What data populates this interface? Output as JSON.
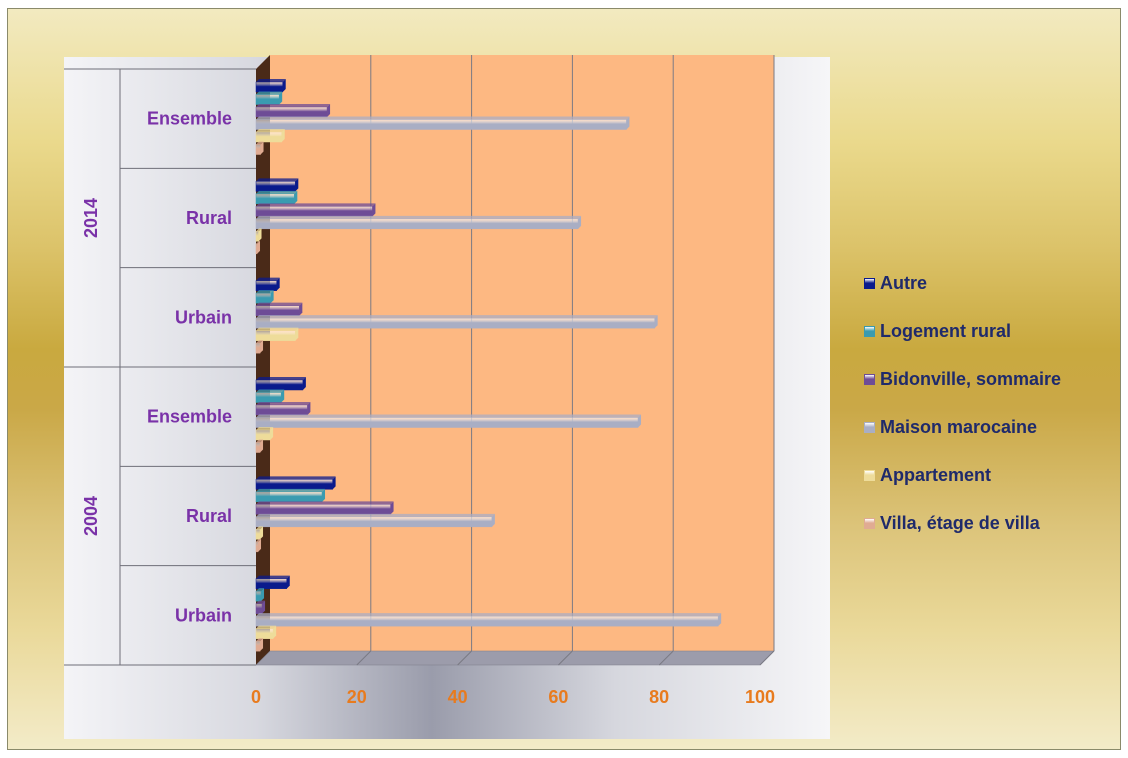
{
  "chart_data": {
    "type": "bar",
    "orientation": "horizontal",
    "title": "",
    "xlabel": "",
    "ylabel": "",
    "xlim": [
      0,
      100
    ],
    "x_ticks": [
      "0",
      "20",
      "40",
      "60",
      "80",
      "100"
    ],
    "grid": true,
    "legend_position": "right",
    "groups": [
      {
        "label": "2014",
        "categories": [
          "Ensemble",
          "Rural",
          "Urbain"
        ]
      },
      {
        "label": "2004",
        "categories": [
          "Ensemble",
          "Rural",
          "Urbain"
        ]
      }
    ],
    "categories": [
      "2014 - Ensemble",
      "2014 - Rural",
      "2014 - Urbain",
      "2004 - Ensemble",
      "2004 - Rural",
      "2004 - Urbain"
    ],
    "series": [
      {
        "name": "Autre",
        "color": "#0a1a8c",
        "values": [
          5.3,
          7.8,
          4.1,
          9.3,
          15.2,
          6.1
        ]
      },
      {
        "name": "Logement rural",
        "color": "#3a9bb0",
        "values": [
          4.6,
          7.6,
          2.9,
          5.0,
          13.1,
          1.0
        ]
      },
      {
        "name": "Bidonville, sommaire",
        "color": "#6e4c96",
        "values": [
          14.1,
          23.1,
          8.6,
          10.2,
          26.7,
          1.2
        ]
      },
      {
        "name": "Maison marocaine",
        "color": "#a9aec4",
        "values": [
          73.5,
          63.9,
          79.1,
          75.8,
          46.8,
          91.7
        ]
      },
      {
        "name": "Appartement",
        "color": "#eedc9a",
        "values": [
          5.1,
          0.5,
          7.8,
          2.8,
          0.8,
          3.4
        ]
      },
      {
        "name": "Villa, étage de villa",
        "color": "#e0ab92",
        "values": [
          0.9,
          0.2,
          0.8,
          0.8,
          0.4,
          0.8
        ]
      }
    ],
    "legend_order": [
      "Autre",
      "Logement rural",
      "Bidonville, sommaire",
      "Maison marocaine",
      "Appartement",
      "Villa, étage de villa"
    ]
  },
  "colors": {
    "wall": "#fdb882",
    "floor": "#4a2a18",
    "category_label": "#7a32a8",
    "year_label": "#7a32a8",
    "tick_label": "#e87b1e",
    "legend_label": "#1f2a6b"
  }
}
